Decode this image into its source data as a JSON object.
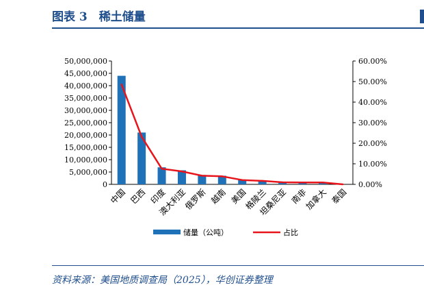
{
  "header": {
    "title": "图表 3　稀土储量"
  },
  "footer": {
    "source": "资料来源：美国地质调查局（2025），华创证券整理"
  },
  "colors": {
    "accent": "#1f4e8c",
    "bar": "#1f72b8",
    "line": "#e8141b"
  },
  "chart_data": {
    "type": "bar",
    "categories": [
      "中国",
      "巴西",
      "印度",
      "澳大利亚",
      "俄罗斯",
      "越南",
      "美国",
      "格陵兰",
      "坦桑尼亚",
      "南非",
      "加拿大",
      "泰国"
    ],
    "series": [
      {
        "name": "储量（公吨）",
        "type": "bar",
        "axis": "left",
        "values": [
          44000000,
          21000000,
          6900000,
          5700000,
          3800000,
          3500000,
          1900000,
          1500000,
          890000,
          860000,
          830000,
          4500
        ]
      },
      {
        "name": "占比",
        "type": "line",
        "axis": "right",
        "values": [
          48.6,
          23.2,
          7.6,
          6.3,
          4.2,
          3.9,
          2.1,
          1.7,
          1.0,
          0.9,
          0.9,
          0.005
        ]
      }
    ],
    "y_left": {
      "ylim": [
        0,
        50000000
      ],
      "ticks": [
        "0",
        "5,000,000",
        "10,000,000",
        "15,000,000",
        "20,000,000",
        "25,000,000",
        "30,000,000",
        "35,000,000",
        "40,000,000",
        "45,000,000",
        "50,000,000"
      ]
    },
    "y_right": {
      "ylim": [
        0,
        60
      ],
      "ticks": [
        "0.00%",
        "10.00%",
        "20.00%",
        "30.00%",
        "40.00%",
        "50.00%",
        "60.00%"
      ]
    },
    "legend": {
      "position": "bottom",
      "items": [
        "储量（公吨）",
        "占比"
      ]
    },
    "grid": false
  }
}
